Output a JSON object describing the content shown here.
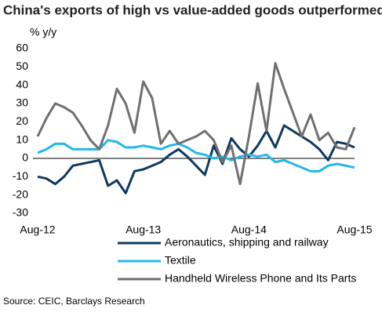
{
  "chart_data": {
    "type": "line",
    "title": "China's exports of high vs value-added goods outperformed",
    "y_label": "% y/y",
    "source": "Source: CEIC, Barclays Research",
    "categories": [
      "Aug-12",
      null,
      null,
      null,
      null,
      null,
      null,
      null,
      null,
      null,
      null,
      null,
      "Aug-13",
      null,
      null,
      null,
      null,
      null,
      null,
      null,
      null,
      null,
      null,
      null,
      "Aug-14",
      null,
      null,
      null,
      null,
      null,
      null,
      null,
      null,
      null,
      null,
      null,
      "Aug-15"
    ],
    "ylim": [
      -30,
      60
    ],
    "yticks": [
      -30,
      -20,
      -10,
      0,
      10,
      20,
      30,
      40,
      50,
      60
    ],
    "series": [
      {
        "name": "Aeronautics, shipping and railway",
        "color": "#0e3a5e",
        "values": [
          -10,
          -11,
          -14,
          -10,
          -4,
          -3,
          -2,
          -1,
          -15,
          -12,
          -19,
          -7,
          -6,
          -4,
          -2,
          2,
          5,
          1,
          -4,
          -9,
          7,
          -3,
          11,
          5,
          1,
          7,
          15,
          6,
          18,
          15,
          12,
          9,
          5,
          -1,
          9,
          8,
          6
        ]
      },
      {
        "name": "Textile",
        "color": "#22b8ea",
        "values": [
          3,
          5,
          8,
          8,
          5,
          5,
          5,
          5,
          10,
          9,
          6,
          6,
          7,
          6,
          5,
          7,
          8,
          6,
          3,
          2,
          0,
          1,
          -1,
          1,
          2,
          1,
          2,
          -2,
          -1,
          -3,
          -5,
          -7,
          -7,
          -4,
          -3,
          -4,
          -5
        ]
      },
      {
        "name": "Handheld Wireless Phone and Its Parts",
        "color": "#707070",
        "values": [
          12,
          22,
          30,
          28,
          25,
          18,
          10,
          5,
          18,
          38,
          30,
          14,
          42,
          33,
          8,
          15,
          8,
          10,
          12,
          15,
          10,
          -2,
          7,
          -14,
          12,
          41,
          15,
          52,
          38,
          25,
          12,
          24,
          10,
          14,
          6,
          5,
          17
        ]
      }
    ]
  }
}
